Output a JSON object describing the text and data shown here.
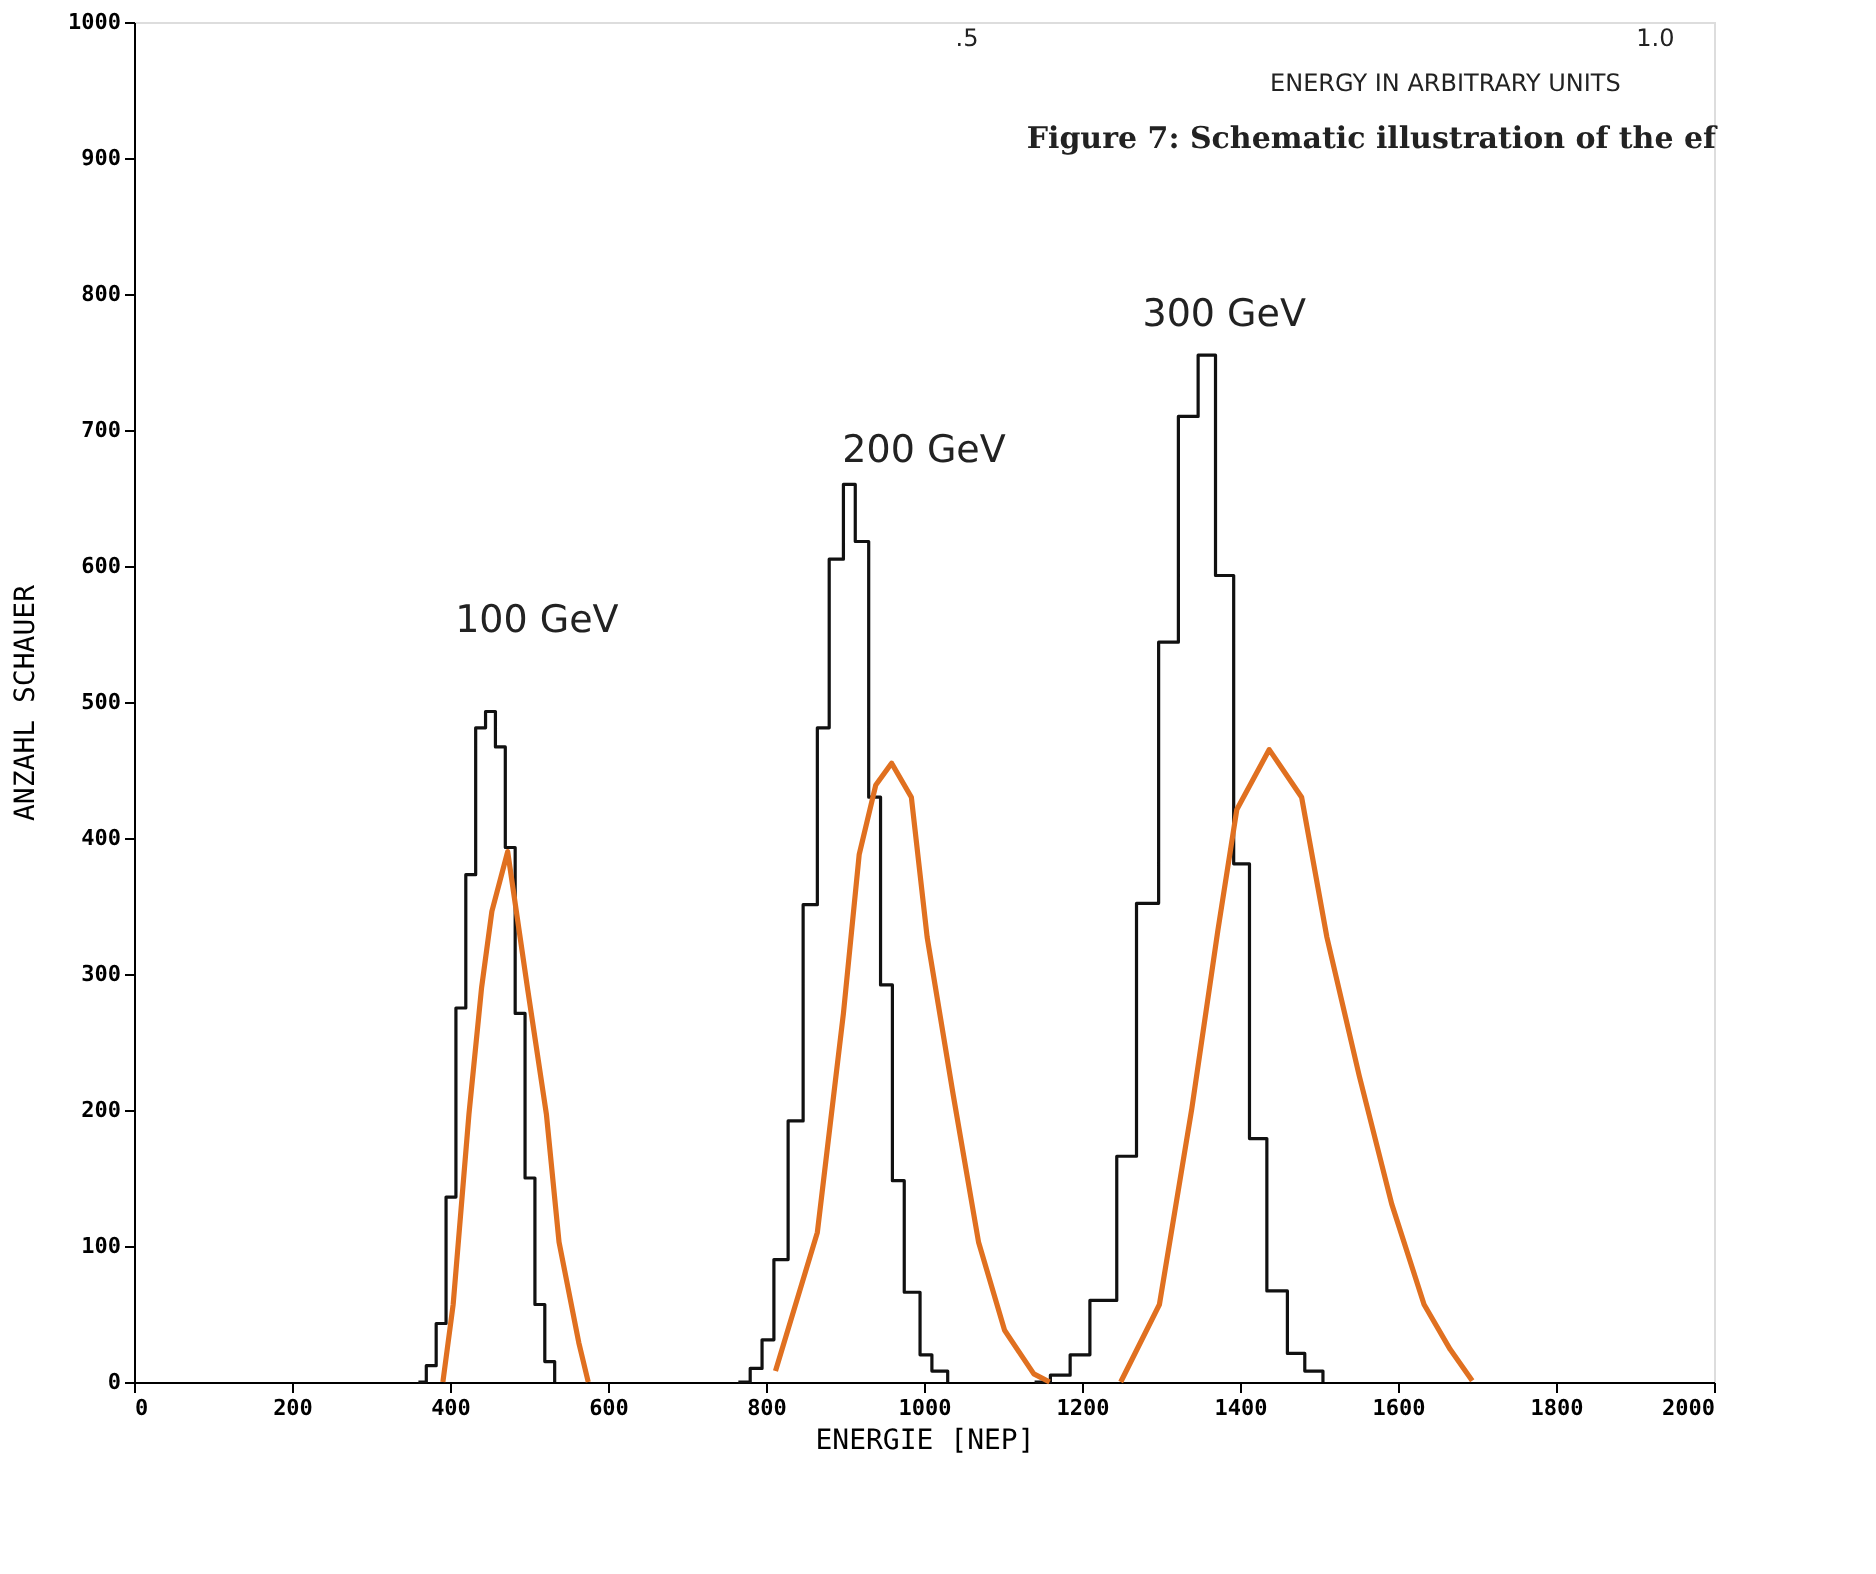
{
  "chart_data": {
    "type": "step",
    "xlabel": "ENERGIE [NEP]",
    "ylabel": "ANZAHL SCHAUER",
    "xlim": [
      0,
      2000
    ],
    "ylim": [
      0,
      1000
    ],
    "xticks": [
      0,
      200,
      400,
      600,
      800,
      1000,
      1200,
      1400,
      1600,
      1800,
      2000
    ],
    "yticks": [
      0,
      100,
      200,
      300,
      400,
      500,
      600,
      700,
      800,
      900,
      1000
    ],
    "grid": false,
    "line_style": "solid",
    "marker": "none",
    "series": [
      {
        "color": "#111111",
        "x": [
          360,
          370,
          382.5,
          395,
          407.5,
          420,
          432.5,
          445,
          457.5,
          470,
          482.5,
          495,
          507.5,
          520,
          532.5
        ],
        "values": [
          0,
          12,
          43,
          136,
          275,
          373,
          481,
          493,
          467,
          393,
          271,
          150,
          57,
          15,
          0
        ]
      },
      {
        "color": "#111111",
        "x": [
          765,
          780,
          795,
          810,
          828,
          847,
          865,
          880,
          898,
          913,
          930,
          945,
          960,
          975,
          995,
          1010,
          1030
        ],
        "values": [
          0,
          10,
          31,
          90,
          192,
          351,
          481,
          605,
          660,
          618,
          430,
          292,
          148,
          66,
          20,
          8,
          0
        ]
      },
      {
        "color": "#111111",
        "x": [
          1140,
          1160,
          1185,
          1210,
          1244,
          1269,
          1297,
          1322,
          1347,
          1369,
          1392,
          1412,
          1434,
          1460,
          1482,
          1505
        ],
        "values": [
          0,
          5,
          20,
          60,
          166,
          352,
          544,
          710,
          755,
          593,
          381,
          179,
          67,
          21,
          8,
          0
        ]
      },
      {
        "type": "line",
        "color": "#e07020",
        "x": [
          391,
          404,
          424,
          440,
          453,
          473,
          498,
          522,
          538,
          563,
          575
        ],
        "values": [
          0,
          57,
          197,
          290,
          346,
          390,
          290,
          197,
          103,
          29,
          0
        ]
      },
      {
        "type": "line",
        "color": "#e07020",
        "x": [
          812,
          865,
          898,
          918,
          939,
          959,
          984,
          1004,
          1037,
          1069,
          1102,
          1139,
          1159
        ],
        "values": [
          8,
          110,
          271,
          388,
          439,
          455,
          430,
          327,
          211,
          103,
          38,
          6,
          0
        ]
      },
      {
        "type": "line",
        "color": "#e07020",
        "x": [
          1249,
          1298,
          1339,
          1372,
          1396,
          1437,
          1478,
          1510,
          1551,
          1592,
          1633,
          1666,
          1694
        ],
        "values": [
          0,
          57,
          201,
          332,
          421,
          465,
          430,
          327,
          225,
          131,
          57,
          24,
          1
        ]
      }
    ],
    "annotations": [
      "100 GeV",
      "200 GeV",
      "300 GeV",
      ".5",
      "1.0",
      "ENERGY IN ARBITRARY UNITS",
      "Figure 7: Schematic illustration of the ef"
    ]
  }
}
